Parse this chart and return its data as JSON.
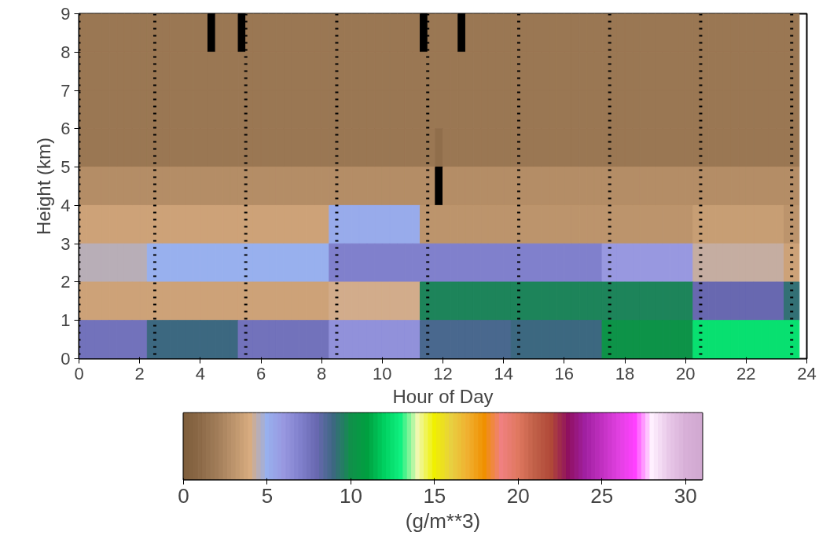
{
  "chart_data": {
    "type": "heatmap",
    "xlabel": "Hour of Day",
    "ylabel": "Height (km)",
    "clabel": "(g/m**3)",
    "x": [
      0.125,
      0.375,
      0.625,
      0.875,
      1.125,
      1.375,
      1.625,
      1.875,
      2.125,
      2.375,
      2.625,
      2.875,
      3.125,
      3.375,
      3.625,
      3.875,
      4.125,
      4.375,
      4.625,
      4.875,
      5.125,
      5.375,
      5.625,
      5.875,
      6.125,
      6.375,
      6.625,
      6.875,
      7.125,
      7.375,
      7.625,
      7.875,
      8.125,
      8.375,
      8.625,
      8.875,
      9.125,
      9.375,
      9.625,
      9.875,
      10.125,
      10.375,
      10.625,
      10.875,
      11.125,
      11.375,
      11.625,
      11.875,
      12.125,
      12.375,
      12.625,
      12.875,
      13.125,
      13.375,
      13.625,
      13.875,
      14.125,
      14.375,
      14.625,
      14.875,
      15.125,
      15.375,
      15.625,
      15.875,
      16.125,
      16.375,
      16.625,
      16.875,
      17.125,
      17.375,
      17.625,
      17.875,
      18.125,
      18.375,
      18.625,
      18.875,
      19.125,
      19.375,
      19.625,
      19.875,
      20.125,
      20.375,
      20.625,
      20.875,
      21.125,
      21.375,
      21.625,
      21.875,
      22.125,
      22.375,
      22.625,
      22.875,
      23.125,
      23.375,
      23.625
    ],
    "xlim": [
      0,
      24
    ],
    "xticks": [
      0,
      2,
      4,
      6,
      8,
      10,
      12,
      14,
      16,
      18,
      20,
      22,
      24
    ],
    "ylim": [
      0,
      9
    ],
    "yticks": [
      0,
      1,
      2,
      3,
      4,
      5,
      6,
      7,
      8,
      9
    ],
    "clim": [
      0,
      31
    ],
    "cticks": [
      0,
      5,
      10,
      15,
      20,
      25,
      30
    ],
    "colors": [
      "#7d5c3a",
      "#8c6a48",
      "#a07c58",
      "#bc946c",
      "#d8ac80",
      "#98b0ee",
      "#9898e0",
      "#8080cc",
      "#6868b0",
      "#3c6880",
      "#10904a",
      "#00a040",
      "#00d060",
      "#10f080",
      "#f0f8b0",
      "#f0f000",
      "#e8d040",
      "#f0b030",
      "#f09000",
      "#f08080",
      "#e07860",
      "#c06048",
      "#b04838",
      "#901060",
      "#a020a0",
      "#c030c0",
      "#e040e0",
      "#ff40ff",
      "#fff0ff",
      "#e8c8e8",
      "#d8b0d8",
      "#d0a8d0"
    ],
    "cells": [
      [
        1.7,
        1.7,
        1.7,
        1.7,
        1.7,
        1.7,
        1.7,
        1.7,
        1.7,
        1.7,
        1.7,
        1.7,
        1.7,
        1.7,
        1.7,
        1.7,
        1.7,
        null,
        1.7,
        1.7,
        1.7,
        null,
        1.7,
        1.7,
        1.7,
        1.7,
        1.7,
        1.7,
        1.7,
        1.7,
        1.7,
        1.7,
        1.7,
        1.7,
        1.7,
        1.7,
        1.7,
        1.7,
        1.7,
        1.7,
        1.7,
        1.7,
        1.7,
        1.7,
        1.7,
        null,
        1.7,
        1.7,
        1.7,
        1.7,
        null,
        1.7,
        1.7,
        1.7,
        1.7,
        1.7,
        1.7,
        1.7,
        1.7,
        1.7,
        1.7,
        1.7,
        1.7,
        1.7,
        1.7,
        1.7,
        1.7,
        1.7,
        1.7,
        1.7,
        1.7,
        1.7,
        1.7,
        1.7,
        1.7,
        1.7,
        1.7,
        1.7,
        1.7,
        1.7,
        1.7,
        1.7,
        1.7,
        1.7,
        1.7,
        1.7,
        1.7,
        1.7,
        1.7,
        1.7,
        1.7,
        1.7,
        1.7,
        1.7,
        1.7
      ],
      [
        1.7,
        1.7,
        1.7,
        1.7,
        1.7,
        1.7,
        1.7,
        1.7,
        1.7,
        1.7,
        1.7,
        1.7,
        1.7,
        1.7,
        1.7,
        1.7,
        1.7,
        1.7,
        1.7,
        1.7,
        1.7,
        1.7,
        1.7,
        1.7,
        1.7,
        1.7,
        1.7,
        1.7,
        1.7,
        1.7,
        1.7,
        1.7,
        1.7,
        1.7,
        1.7,
        1.7,
        1.7,
        1.7,
        1.7,
        1.7,
        1.7,
        1.7,
        1.7,
        1.7,
        1.7,
        1.7,
        1.7,
        1.7,
        1.7,
        1.7,
        1.7,
        1.7,
        1.7,
        1.7,
        1.7,
        1.7,
        1.7,
        1.7,
        1.7,
        1.7,
        1.7,
        1.7,
        1.7,
        1.7,
        1.7,
        1.7,
        1.7,
        1.7,
        1.7,
        1.7,
        1.7,
        1.7,
        1.7,
        1.7,
        1.7,
        1.7,
        1.7,
        1.7,
        1.7,
        1.7,
        1.7,
        1.7,
        1.7,
        1.7,
        1.7,
        1.7,
        1.7,
        1.7,
        1.7,
        1.7,
        1.7,
        1.7,
        1.7,
        1.7,
        1.7
      ],
      [
        1.7,
        1.7,
        1.7,
        1.7,
        1.7,
        1.7,
        1.7,
        1.7,
        1.7,
        1.7,
        1.7,
        1.7,
        1.7,
        1.7,
        1.7,
        1.7,
        1.7,
        1.7,
        1.7,
        1.7,
        1.7,
        1.7,
        1.7,
        1.7,
        1.7,
        1.7,
        1.7,
        1.7,
        1.7,
        1.7,
        1.7,
        1.7,
        1.7,
        1.7,
        1.7,
        1.7,
        1.7,
        1.7,
        1.7,
        1.7,
        1.7,
        1.7,
        1.7,
        1.7,
        1.7,
        1.7,
        1.7,
        1.7,
        1.7,
        1.7,
        1.7,
        1.7,
        1.7,
        1.7,
        1.7,
        1.7,
        1.7,
        1.7,
        1.7,
        1.7,
        1.7,
        1.7,
        1.7,
        1.7,
        1.7,
        1.7,
        1.7,
        1.7,
        1.7,
        1.7,
        1.7,
        1.7,
        1.7,
        1.7,
        1.7,
        1.7,
        1.7,
        1.7,
        1.7,
        1.7,
        1.7,
        1.7,
        1.7,
        1.7,
        1.7,
        1.7,
        1.7,
        1.7,
        1.7,
        1.7,
        1.7,
        1.7,
        1.7,
        1.7,
        1.7
      ],
      [
        1.7,
        1.7,
        1.7,
        1.7,
        1.7,
        1.7,
        1.7,
        1.7,
        1.7,
        1.7,
        1.7,
        1.7,
        1.7,
        1.7,
        1.7,
        1.7,
        1.7,
        1.7,
        1.7,
        1.7,
        1.7,
        1.7,
        1.7,
        1.7,
        1.7,
        1.7,
        1.7,
        1.7,
        1.7,
        1.7,
        1.7,
        1.7,
        1.7,
        1.7,
        1.7,
        1.7,
        1.7,
        1.7,
        1.7,
        1.7,
        1.7,
        1.7,
        1.7,
        1.7,
        1.7,
        1.7,
        1.7,
        1.2,
        1.7,
        1.7,
        1.7,
        1.7,
        1.7,
        1.7,
        1.7,
        1.7,
        1.7,
        1.7,
        1.7,
        1.7,
        1.7,
        1.7,
        1.7,
        1.7,
        1.7,
        1.7,
        1.7,
        1.7,
        1.7,
        1.7,
        1.7,
        1.7,
        1.7,
        1.7,
        1.7,
        1.7,
        1.7,
        1.7,
        1.7,
        1.7,
        1.7,
        1.7,
        1.7,
        1.7,
        1.7,
        1.7,
        1.7,
        1.7,
        1.7,
        1.7,
        1.7,
        1.7,
        1.7,
        1.7,
        1.7
      ],
      [
        2.7,
        2.7,
        2.7,
        2.7,
        2.7,
        2.7,
        2.7,
        2.7,
        2.7,
        2.7,
        2.7,
        2.7,
        2.7,
        2.7,
        2.7,
        2.7,
        2.7,
        2.7,
        2.7,
        2.7,
        2.7,
        2.7,
        2.7,
        2.7,
        2.7,
        2.7,
        2.7,
        2.7,
        2.7,
        2.7,
        2.7,
        2.7,
        2.7,
        2.7,
        2.7,
        2.7,
        2.7,
        2.7,
        2.7,
        2.7,
        2.7,
        2.7,
        2.7,
        2.7,
        2.7,
        2.7,
        2.7,
        null,
        2.7,
        2.7,
        2.7,
        2.7,
        2.7,
        2.7,
        2.7,
        2.7,
        2.7,
        2.7,
        2.7,
        2.7,
        2.7,
        2.7,
        2.7,
        2.7,
        2.7,
        2.7,
        2.7,
        2.7,
        2.7,
        2.7,
        2.7,
        2.7,
        2.7,
        2.7,
        2.7,
        2.7,
        2.7,
        2.7,
        2.7,
        2.7,
        2.7,
        2.7,
        2.7,
        2.7,
        2.7,
        2.7,
        2.7,
        2.7,
        2.7,
        2.7,
        2.7,
        2.7,
        2.7,
        2.7,
        2.7
      ],
      [
        3.6,
        3.6,
        3.6,
        3.6,
        3.6,
        3.6,
        3.6,
        3.6,
        3.6,
        3.6,
        3.6,
        3.6,
        3.6,
        3.6,
        3.6,
        3.6,
        3.6,
        3.6,
        3.6,
        3.6,
        3.6,
        3.6,
        3.6,
        3.6,
        3.6,
        3.6,
        3.6,
        3.6,
        3.6,
        3.6,
        3.6,
        3.6,
        3.6,
        5.2,
        5.2,
        5.2,
        5.2,
        5.2,
        5.2,
        5.2,
        5.2,
        5.2,
        5.2,
        5.2,
        5.2,
        3.0,
        3.0,
        3.0,
        3.0,
        3.0,
        3.0,
        3.0,
        3.0,
        3.0,
        3.0,
        3.0,
        3.0,
        3.0,
        3.0,
        3.0,
        3.0,
        3.0,
        3.0,
        3.0,
        3.0,
        3.0,
        3.0,
        3.0,
        3.0,
        3.0,
        3.0,
        3.0,
        3.0,
        3.0,
        3.0,
        3.0,
        3.0,
        3.0,
        3.0,
        3.0,
        3.0,
        3.4,
        3.4,
        3.4,
        3.4,
        3.4,
        3.4,
        3.4,
        3.4,
        3.4,
        3.4,
        3.4,
        3.4,
        3.0,
        3.0
      ],
      [
        4.5,
        4.5,
        4.5,
        4.5,
        4.5,
        4.5,
        4.5,
        4.5,
        4.5,
        5.0,
        5.0,
        5.0,
        5.0,
        5.0,
        5.0,
        5.0,
        5.0,
        5.0,
        5.0,
        5.0,
        5.0,
        5.0,
        5.0,
        5.0,
        5.0,
        5.0,
        5.0,
        5.0,
        5.0,
        5.0,
        5.0,
        5.0,
        5.0,
        7.0,
        7.0,
        7.0,
        7.0,
        7.0,
        7.0,
        7.0,
        7.0,
        7.0,
        7.0,
        7.0,
        7.0,
        7.0,
        7.0,
        7.0,
        7.0,
        7.0,
        7.0,
        7.0,
        7.0,
        7.0,
        7.0,
        7.0,
        7.0,
        7.0,
        7.0,
        7.0,
        7.0,
        7.0,
        7.0,
        7.0,
        7.0,
        7.0,
        7.0,
        7.0,
        7.0,
        6.0,
        6.0,
        6.0,
        6.0,
        6.0,
        6.0,
        6.0,
        6.0,
        6.0,
        6.0,
        6.0,
        6.0,
        4.3,
        4.3,
        4.3,
        4.3,
        4.3,
        4.3,
        4.3,
        4.3,
        4.3,
        4.3,
        4.3,
        4.3,
        3.6,
        3.6
      ],
      [
        3.6,
        3.6,
        3.6,
        3.6,
        3.6,
        3.6,
        3.6,
        3.6,
        3.6,
        3.6,
        3.6,
        3.6,
        3.6,
        3.6,
        3.6,
        3.6,
        3.6,
        3.6,
        3.6,
        3.6,
        3.6,
        3.6,
        3.6,
        3.6,
        3.6,
        3.6,
        3.6,
        3.6,
        3.6,
        3.6,
        3.6,
        3.6,
        3.6,
        4.1,
        4.1,
        4.1,
        4.1,
        4.1,
        4.1,
        4.1,
        4.1,
        4.1,
        4.1,
        4.1,
        4.1,
        9.7,
        9.7,
        9.7,
        9.7,
        9.7,
        9.7,
        9.7,
        9.7,
        9.7,
        9.7,
        9.7,
        9.7,
        9.7,
        9.7,
        9.7,
        9.7,
        9.7,
        9.7,
        9.7,
        9.7,
        9.7,
        9.7,
        9.7,
        9.7,
        9.7,
        9.7,
        9.7,
        9.7,
        9.7,
        9.7,
        9.7,
        9.7,
        9.7,
        9.7,
        9.7,
        9.7,
        8.0,
        8.0,
        8.0,
        8.0,
        8.0,
        8.0,
        8.0,
        8.0,
        8.0,
        8.0,
        8.0,
        8.0,
        9.2,
        9.2
      ],
      [
        7.6,
        7.6,
        7.6,
        7.6,
        7.6,
        7.6,
        7.6,
        7.6,
        7.6,
        9.0,
        9.0,
        9.0,
        9.0,
        9.0,
        9.0,
        9.0,
        9.0,
        9.0,
        9.0,
        9.0,
        9.0,
        7.6,
        7.6,
        7.6,
        7.6,
        7.6,
        7.6,
        7.6,
        7.6,
        7.6,
        7.6,
        7.6,
        7.6,
        6.3,
        6.3,
        6.3,
        6.3,
        6.3,
        6.3,
        6.3,
        6.3,
        6.3,
        6.3,
        6.3,
        6.3,
        8.7,
        8.7,
        8.7,
        8.7,
        8.7,
        8.7,
        8.7,
        8.7,
        8.7,
        8.7,
        8.7,
        8.7,
        9.0,
        9.0,
        9.0,
        9.0,
        9.0,
        9.0,
        9.0,
        9.0,
        9.0,
        9.0,
        9.0,
        9.0,
        10.2,
        10.2,
        10.2,
        10.2,
        10.2,
        10.2,
        10.2,
        10.2,
        10.2,
        10.2,
        10.2,
        10.2,
        12.5,
        12.5,
        12.5,
        12.5,
        12.5,
        12.5,
        12.5,
        12.5,
        12.5,
        12.5,
        12.5,
        12.5,
        12.5,
        12.5
      ]
    ],
    "ref_lines": [
      {
        "axis": "x",
        "value": 0,
        "line_style": "dotted",
        "color": "#000000"
      },
      {
        "axis": "x",
        "value": 2.5,
        "line_style": "dotted",
        "color": "#000000"
      },
      {
        "axis": "x",
        "value": 5.5,
        "line_style": "dotted",
        "color": "#000000"
      },
      {
        "axis": "x",
        "value": 8.5,
        "line_style": "dotted",
        "color": "#000000"
      },
      {
        "axis": "x",
        "value": 11.5,
        "line_style": "dotted",
        "color": "#000000"
      },
      {
        "axis": "x",
        "value": 14.5,
        "line_style": "dotted",
        "color": "#000000"
      },
      {
        "axis": "x",
        "value": 17.5,
        "line_style": "dotted",
        "color": "#000000"
      },
      {
        "axis": "x",
        "value": 20.5,
        "line_style": "dotted",
        "color": "#000000"
      },
      {
        "axis": "x",
        "value": 23.5,
        "line_style": "dotted",
        "color": "#000000"
      }
    ]
  }
}
